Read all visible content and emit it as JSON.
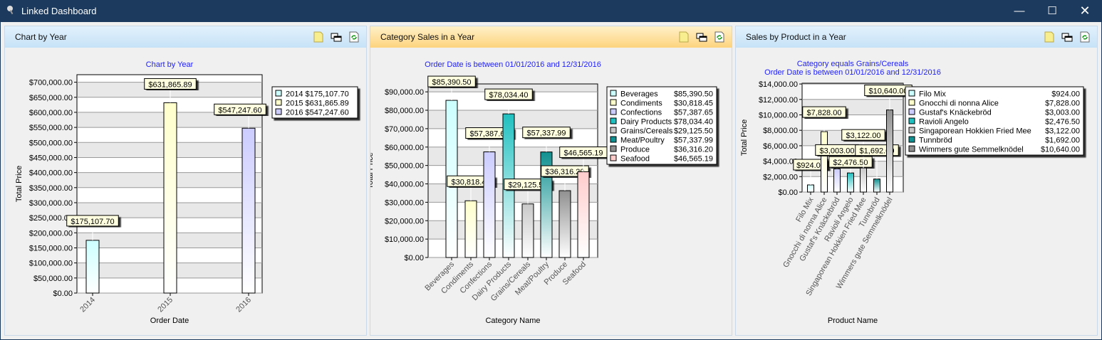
{
  "window": {
    "title": "Linked Dashboard",
    "controls": [
      "minimize",
      "maximize",
      "close"
    ]
  },
  "panels": [
    {
      "title": "Chart by Year",
      "header_icons": [
        "note-icon",
        "window-icon",
        "refresh-icon"
      ]
    },
    {
      "title": "Category Sales in a Year",
      "header_icons": [
        "note-icon",
        "window-icon",
        "refresh-icon"
      ]
    },
    {
      "title": "Sales by Product in a Year",
      "header_icons": [
        "note-icon",
        "window-icon",
        "refresh-icon"
      ]
    }
  ],
  "chart_data": [
    {
      "type": "bar",
      "title": [
        "Chart by Year"
      ],
      "xlabel": "Order Date",
      "ylabel": "Total Price",
      "ylim": [
        0,
        725000
      ],
      "ystep": 50000,
      "categories": [
        "2014",
        "2015",
        "2016"
      ],
      "values": [
        175107.7,
        631865.89,
        547247.6
      ],
      "colors": [
        "#ccffff",
        "#ffffcc",
        "#ccccff"
      ],
      "legend": "right",
      "grid": true
    },
    {
      "type": "bar",
      "title": [
        "Order Date is between 01/01/2016 and 12/31/2016"
      ],
      "xlabel": "Category Name",
      "ylabel": "Total Price",
      "ylim": [
        0,
        94300
      ],
      "ystep": 10000,
      "categories": [
        "Beverages",
        "Condiments",
        "Confections",
        "Dairy Products",
        "Grains/Cereals",
        "Meat/Poultry",
        "Produce",
        "Seafood"
      ],
      "values": [
        85390.5,
        30818.45,
        57387.65,
        78034.4,
        29125.5,
        57337.99,
        36316.2,
        46565.19
      ],
      "colors": [
        "#ccffff",
        "#ffffcc",
        "#ccccff",
        "#20c0c0",
        "#c8c8c8",
        "#109090",
        "#909090",
        "#ffcccc"
      ],
      "legend": "right",
      "grid": true
    },
    {
      "type": "bar",
      "title": [
        "Category equals Grains/Cereals",
        "Order Date is between 01/01/2016 and 12/31/2016"
      ],
      "xlabel": "Product Name",
      "ylabel": "Total Price",
      "ylim": [
        0,
        14100
      ],
      "ystep": 2000,
      "categories": [
        "Filo Mix",
        "Gnocchi di nonna Alice",
        "Gustaf's Knäckebröd",
        "Ravioli Angelo",
        "Singaporean Hokkien Fried Mee",
        "Tunnbröd",
        "Wimmers gute Semmelknödel"
      ],
      "values": [
        924.0,
        7828.0,
        3003.0,
        2476.5,
        3122.0,
        1692.0,
        10640.0
      ],
      "colors": [
        "#ccffff",
        "#ffffcc",
        "#ccccff",
        "#20c0c0",
        "#c8c8c8",
        "#109090",
        "#909090"
      ],
      "legend": "right",
      "grid": true
    }
  ]
}
